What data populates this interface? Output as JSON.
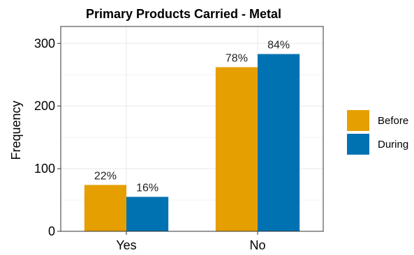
{
  "chart_data": {
    "type": "bar",
    "title": "Primary Products Carried - Metal",
    "xlabel": "",
    "ylabel": "Frequency",
    "categories": [
      "Yes",
      "No"
    ],
    "series": [
      {
        "name": "Before",
        "values": [
          74,
          262
        ],
        "labels": [
          "22%",
          "78%"
        ],
        "color": "#E69F00"
      },
      {
        "name": "During",
        "values": [
          55,
          283
        ],
        "labels": [
          "16%",
          "84%"
        ],
        "color": "#0072B2"
      }
    ],
    "ylim": [
      0,
      327
    ],
    "yticks": [
      0,
      100,
      200,
      300
    ],
    "grid": true,
    "legend": "right"
  }
}
